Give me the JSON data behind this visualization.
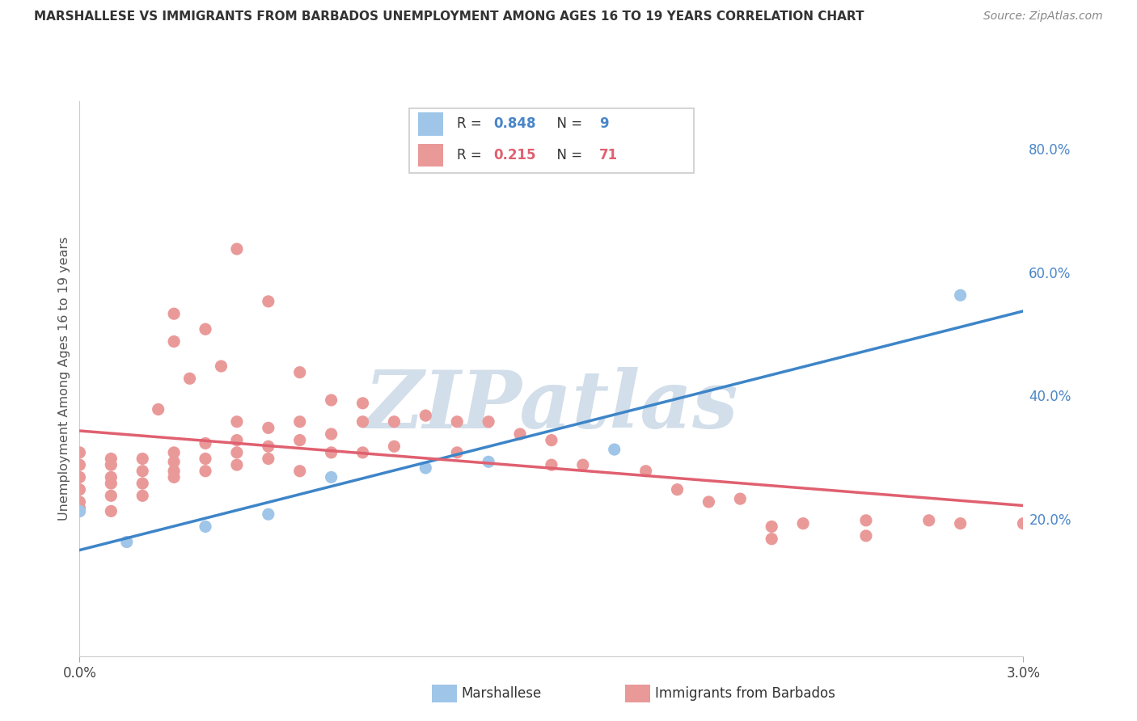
{
  "title": "MARSHALLESE VS IMMIGRANTS FROM BARBADOS UNEMPLOYMENT AMONG AGES 16 TO 19 YEARS CORRELATION CHART",
  "source": "Source: ZipAtlas.com",
  "ylabel": "Unemployment Among Ages 16 to 19 years",
  "right_ytick_vals": [
    0.8,
    0.6,
    0.4,
    0.2
  ],
  "right_yticks": [
    "80.0%",
    "60.0%",
    "40.0%",
    "20.0%"
  ],
  "legend_r1": "R = ",
  "legend_r1_val": "0.848",
  "legend_n1": "N = ",
  "legend_n1_val": " 9",
  "legend_r2": "R = ",
  "legend_r2_val": "0.215",
  "legend_n2": "N = ",
  "legend_n2_val": "71",
  "marshallese_color": "#9fc5e8",
  "barbados_color": "#ea9999",
  "line_marshallese_color": "#3d85c8",
  "line_barbados_color": "#e06070",
  "background_color": "#ffffff",
  "watermark": "ZIPatlas",
  "watermark_color_r": 180,
  "watermark_color_g": 200,
  "watermark_color_b": 220,
  "grid_color": "#e8e8e8",
  "legend_text_color": "#555555",
  "val_color": "#4a86c8",
  "xlim": [
    0.0,
    0.03
  ],
  "ylim": [
    -0.02,
    0.88
  ],
  "marshallese_x": [
    0.0,
    0.0015,
    0.004,
    0.006,
    0.008,
    0.011,
    0.013,
    0.017,
    0.028
  ],
  "marshallese_y": [
    0.215,
    0.165,
    0.19,
    0.21,
    0.27,
    0.285,
    0.295,
    0.315,
    0.565
  ],
  "barbados_x": [
    0.0,
    0.0,
    0.0,
    0.0,
    0.0,
    0.0,
    0.0,
    0.001,
    0.001,
    0.001,
    0.001,
    0.001,
    0.001,
    0.002,
    0.002,
    0.002,
    0.002,
    0.003,
    0.003,
    0.003,
    0.003,
    0.004,
    0.004,
    0.004,
    0.005,
    0.005,
    0.005,
    0.005,
    0.006,
    0.006,
    0.006,
    0.007,
    0.007,
    0.007,
    0.008,
    0.008,
    0.009,
    0.009,
    0.01,
    0.01,
    0.011,
    0.012,
    0.012,
    0.013,
    0.014,
    0.015,
    0.015,
    0.016,
    0.018,
    0.019,
    0.02,
    0.021,
    0.022,
    0.022,
    0.023,
    0.025,
    0.025,
    0.027,
    0.028,
    0.03,
    0.003,
    0.003,
    0.004,
    0.005,
    0.006,
    0.007,
    0.008,
    0.009,
    0.0025,
    0.0035,
    0.0045
  ],
  "barbados_y": [
    0.215,
    0.23,
    0.25,
    0.27,
    0.29,
    0.31,
    0.22,
    0.215,
    0.24,
    0.27,
    0.29,
    0.3,
    0.26,
    0.26,
    0.28,
    0.3,
    0.24,
    0.28,
    0.295,
    0.31,
    0.27,
    0.3,
    0.325,
    0.28,
    0.31,
    0.33,
    0.36,
    0.29,
    0.32,
    0.35,
    0.3,
    0.33,
    0.36,
    0.28,
    0.34,
    0.31,
    0.36,
    0.31,
    0.36,
    0.32,
    0.37,
    0.36,
    0.31,
    0.36,
    0.34,
    0.33,
    0.29,
    0.29,
    0.28,
    0.25,
    0.23,
    0.235,
    0.19,
    0.17,
    0.195,
    0.2,
    0.175,
    0.2,
    0.195,
    0.195,
    0.49,
    0.535,
    0.51,
    0.64,
    0.555,
    0.44,
    0.395,
    0.39,
    0.38,
    0.43,
    0.45
  ]
}
